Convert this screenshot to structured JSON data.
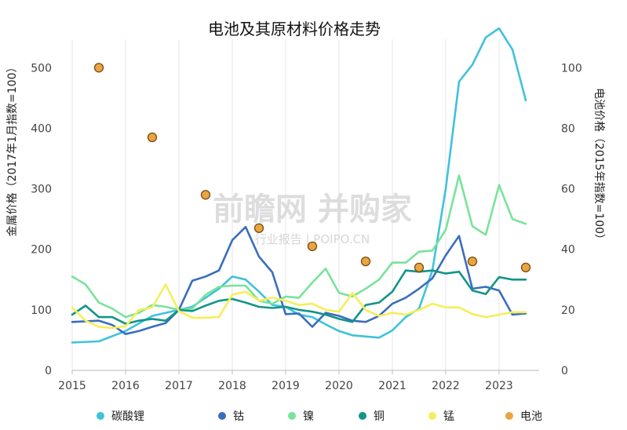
{
  "chart_data": {
    "type": "line",
    "title": "电池及其原材料价格走势",
    "ylabel_left": "金属价格（2017年1月指数=100）",
    "ylabel_right": "电池价格（2015年指数=100）",
    "x_ticks": [
      "2015",
      "2016",
      "2017",
      "2018",
      "2019",
      "2020",
      "2021",
      "2022",
      "2023"
    ],
    "xlim": [
      2015.0,
      2023.75
    ],
    "ylim_left": [
      0,
      560
    ],
    "y_ticks_left": [
      0,
      100,
      200,
      300,
      400,
      500
    ],
    "ylim_right": [
      0,
      112
    ],
    "y_ticks_right": [
      0,
      20,
      40,
      60,
      80,
      100
    ],
    "grid": "vertical",
    "legend_position": "bottom",
    "watermark": {
      "main": "前瞻网 并购家",
      "sub": "行业报告 | POIPO.CN"
    },
    "series": [
      {
        "name": "碳酸锂",
        "color": "#3fc2db",
        "axis": "left",
        "x": [
          2015.0,
          2015.5,
          2016.0,
          2016.5,
          2017.0,
          2017.25,
          2017.5,
          2017.75,
          2018.0,
          2018.25,
          2018.5,
          2018.75,
          2019.0,
          2019.25,
          2019.5,
          2019.75,
          2020.0,
          2020.25,
          2020.5,
          2020.75,
          2021.0,
          2021.25,
          2021.5,
          2021.75,
          2022.0,
          2022.25,
          2022.5,
          2022.75,
          2023.0,
          2023.25,
          2023.5
        ],
        "y": [
          46,
          48,
          65,
          90,
          100,
          105,
          120,
          135,
          155,
          150,
          130,
          108,
          105,
          92,
          88,
          76,
          65,
          58,
          56,
          54,
          66,
          88,
          102,
          165,
          300,
          477,
          505,
          550,
          565,
          530,
          446
        ]
      },
      {
        "name": "钴",
        "color": "#3a6ebd",
        "axis": "left",
        "x": [
          2015.0,
          2015.5,
          2015.75,
          2016.0,
          2016.25,
          2016.5,
          2016.75,
          2017.0,
          2017.25,
          2017.5,
          2017.75,
          2018.0,
          2018.25,
          2018.5,
          2018.75,
          2019.0,
          2019.25,
          2019.5,
          2019.75,
          2020.0,
          2020.25,
          2020.5,
          2020.75,
          2021.0,
          2021.25,
          2021.5,
          2021.75,
          2022.0,
          2022.25,
          2022.5,
          2022.75,
          2023.0,
          2023.25,
          2023.5
        ],
        "y": [
          80,
          82,
          75,
          60,
          65,
          72,
          78,
          100,
          148,
          155,
          165,
          215,
          237,
          188,
          162,
          93,
          94,
          72,
          95,
          90,
          82,
          80,
          90,
          110,
          120,
          135,
          152,
          190,
          222,
          135,
          138,
          132,
          92,
          94
        ]
      },
      {
        "name": "镍",
        "color": "#79e39a",
        "axis": "left",
        "x": [
          2015.0,
          2015.25,
          2015.5,
          2015.75,
          2016.0,
          2016.25,
          2016.5,
          2016.75,
          2017.0,
          2017.25,
          2017.5,
          2017.75,
          2018.0,
          2018.25,
          2018.5,
          2018.75,
          2019.0,
          2019.25,
          2019.5,
          2019.75,
          2020.0,
          2020.25,
          2020.5,
          2020.75,
          2021.0,
          2021.25,
          2021.5,
          2021.75,
          2022.0,
          2022.25,
          2022.5,
          2022.75,
          2023.0,
          2023.25,
          2023.5
        ],
        "y": [
          155,
          142,
          112,
          102,
          88,
          95,
          108,
          105,
          100,
          102,
          125,
          138,
          140,
          140,
          115,
          110,
          122,
          120,
          145,
          168,
          128,
          122,
          135,
          150,
          178,
          178,
          196,
          198,
          232,
          322,
          238,
          224,
          306,
          250,
          242
        ]
      },
      {
        "name": "铜",
        "color": "#14948a",
        "axis": "left",
        "x": [
          2015.0,
          2015.25,
          2015.5,
          2015.75,
          2016.0,
          2016.25,
          2016.5,
          2016.75,
          2017.0,
          2017.25,
          2017.5,
          2017.75,
          2018.0,
          2018.25,
          2018.5,
          2018.75,
          2019.0,
          2019.25,
          2019.5,
          2019.75,
          2020.0,
          2020.25,
          2020.5,
          2020.75,
          2021.0,
          2021.25,
          2021.5,
          2021.75,
          2022.0,
          2022.25,
          2022.5,
          2022.75,
          2023.0,
          2023.25,
          2023.5
        ],
        "y": [
          92,
          107,
          88,
          88,
          77,
          82,
          85,
          82,
          100,
          98,
          107,
          115,
          118,
          112,
          105,
          103,
          105,
          100,
          97,
          92,
          85,
          80,
          108,
          112,
          130,
          165,
          163,
          165,
          160,
          163,
          132,
          126,
          154,
          150,
          150
        ]
      },
      {
        "name": "锰",
        "color": "#f6ee5a",
        "axis": "left",
        "x": [
          2015.0,
          2015.25,
          2015.5,
          2015.75,
          2016.0,
          2016.25,
          2016.5,
          2016.75,
          2017.0,
          2017.25,
          2017.5,
          2017.75,
          2018.0,
          2018.25,
          2018.5,
          2018.75,
          2019.0,
          2019.25,
          2019.5,
          2019.75,
          2020.0,
          2020.25,
          2020.5,
          2020.75,
          2021.0,
          2021.25,
          2021.5,
          2021.75,
          2022.0,
          2022.25,
          2022.5,
          2022.75,
          2023.0,
          2023.25,
          2023.5
        ],
        "y": [
          104,
          82,
          72,
          70,
          73,
          100,
          104,
          142,
          98,
          87,
          87,
          88,
          125,
          130,
          115,
          120,
          115,
          108,
          110,
          100,
          97,
          128,
          100,
          90,
          95,
          92,
          100,
          110,
          104,
          104,
          93,
          88,
          92,
          96,
          96
        ]
      },
      {
        "name": "电池",
        "color": "#e9a541",
        "axis": "right",
        "style": "markers",
        "x": [
          2015.5,
          2016.5,
          2017.5,
          2018.5,
          2019.5,
          2020.5,
          2021.5,
          2022.5,
          2023.5
        ],
        "y": [
          100,
          77,
          58,
          47,
          41,
          36,
          34,
          36,
          34
        ]
      }
    ]
  }
}
